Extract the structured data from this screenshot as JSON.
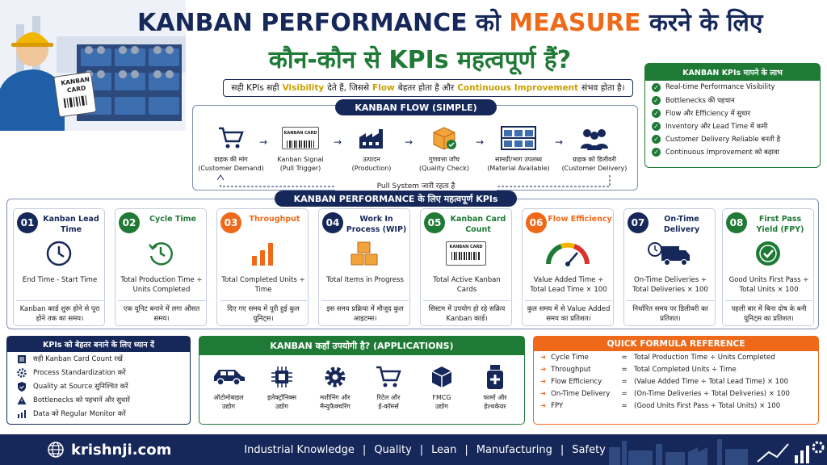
{
  "title_line1": {
    "a": "KANBAN PERFORMANCE",
    "b": "को",
    "c": "MEASURE",
    "d": "करने के लिए"
  },
  "title_line2": "कौन-कौन से KPIs महत्वपूर्ण हैं?",
  "hero": {
    "card_label": "KANBAN CARD"
  },
  "subtitle": {
    "p1": "सही KPIs सही",
    "visibility": "Visibility",
    "p2": "देते हैं, जिससे",
    "flow": "Flow",
    "p3": "बेहतर होता है और",
    "ci": "Continuous Improvement",
    "p4": "संभव होता है।"
  },
  "flow": {
    "heading": "KANBAN FLOW (SIMPLE)",
    "steps": [
      {
        "l1": "ग्राहक की मांग",
        "l2": "(Customer Demand)"
      },
      {
        "l1": "Kanban Signal",
        "l2": "(Pull Trigger)",
        "card": "KANBAN CARD"
      },
      {
        "l1": "उत्पादन",
        "l2": "(Production)"
      },
      {
        "l1": "गुणवत्ता जाँच",
        "l2": "(Quality Check)"
      },
      {
        "l1": "सामग्री/भाग उपलब्ध",
        "l2": "(Material Available)"
      },
      {
        "l1": "ग्राहक को डिलीवरी",
        "l2": "(Customer Delivery)"
      }
    ],
    "pull_label": "Pull System जारी रहता है",
    "arrow": "→"
  },
  "benefits": {
    "heading": "KANBAN KPIs मापने के लाभ",
    "check": "✓",
    "items": [
      "Real-time Performance Visibility",
      "Bottlenecks की पहचान",
      "Flow और Efficiency में सुधार",
      "Inventory और Lead Time में कमी",
      "Customer Delivery Reliable बनती है",
      "Continuous Improvement को बढ़ावा"
    ]
  },
  "kpi_heading": "KANBAN PERFORMANCE के लिए महत्वपूर्ण KPIs",
  "kpis": [
    {
      "num": "01",
      "name": "Kanban Lead Time",
      "formula": "End Time - Start Time",
      "desc": "Kanban कार्ड शुरू होने से पूरा होने तक का समय।",
      "color": "#16285a"
    },
    {
      "num": "02",
      "name": "Cycle Time",
      "formula": "Total Production Time ÷ Units Completed",
      "desc": "एक यूनिट बनाने में लगा औसत समय।",
      "color": "#1f7a36"
    },
    {
      "num": "03",
      "name": "Throughput",
      "formula": "Total Completed Units ÷ Time",
      "desc": "दिए गए समय में पूरी हुई कुल यूनिट्स।",
      "color": "#ee6a1a"
    },
    {
      "num": "04",
      "name": "Work In Process (WIP)",
      "formula": "Total Items in Progress",
      "desc": "इस समय प्रक्रिया में मौजूद कुल आइटम्स।",
      "color": "#16285a"
    },
    {
      "num": "05",
      "name": "Kanban Card Count",
      "formula": "Total Active Kanban Cards",
      "desc": "सिस्टम में उपयोग हो रहे सक्रिय Kanban कार्ड।",
      "color": "#1f7a36",
      "card": "KANBAN CARD"
    },
    {
      "num": "06",
      "name": "Flow Efficiency",
      "formula": "Value Added Time ÷ Total Lead Time × 100",
      "desc": "कुल समय में से Value Added समय का प्रतिशत।",
      "color": "#ee6a1a"
    },
    {
      "num": "07",
      "name": "On-Time Delivery",
      "formula": "On-Time Deliveries ÷ Total Deliveries × 100",
      "desc": "निर्धारित समय पर डिलीवरी का प्रतिशत।",
      "color": "#16285a"
    },
    {
      "num": "08",
      "name": "First Pass Yield (FPY)",
      "formula": "Good Units First Pass ÷ Total Units × 100",
      "desc": "पहली बार में बिना दोष के बनी यूनिट्स का प्रतिशत।",
      "color": "#1f7a36"
    }
  ],
  "tips": {
    "heading": "KPIs को बेहतर बनाने के लिए ध्यान दें",
    "items": [
      "सही Kanban Card Count रखें",
      "Process Standardization करें",
      "Quality at Source सुनिश्चित करें",
      "Bottlenecks को पहचानें और सुधारें",
      "Data को Regular Monitor करें"
    ]
  },
  "apps": {
    "heading": "KANBAN कहाँ उपयोगी है? (APPLICATIONS)",
    "items": [
      {
        "l1": "ऑटोमोबाइल",
        "l2": "उद्योग"
      },
      {
        "l1": "इलेक्ट्रॉनिक्स",
        "l2": "उद्योग"
      },
      {
        "l1": "मशीनिंग और",
        "l2": "मैन्युफैक्चरिंग"
      },
      {
        "l1": "रिटेल और",
        "l2": "ई-कॉमर्स"
      },
      {
        "l1": "FMCG",
        "l2": "उद्योग"
      },
      {
        "l1": "फार्मा और",
        "l2": "हेल्थकेयर"
      }
    ]
  },
  "formula": {
    "heading": "QUICK FORMULA REFERENCE",
    "eq": "=",
    "bullet": "➜",
    "rows": [
      {
        "name": "Cycle Time",
        "expr": "Total Production Time ÷ Units Completed"
      },
      {
        "name": "Throughput",
        "expr": "Total Completed Units ÷ Time"
      },
      {
        "name": "Flow Efficiency",
        "expr": "(Value Added Time ÷ Total Lead Time) × 100"
      },
      {
        "name": "On-Time Delivery",
        "expr": "(On-Time Deliveries ÷ Total Deliveries) × 100"
      },
      {
        "name": "FPY",
        "expr": "(Good Units First Pass ÷ Total Units) × 100"
      }
    ]
  },
  "footer": {
    "site": "krishnji.com",
    "links": [
      "Industrial Knowledge",
      "Quality",
      "Lean",
      "Manufacturing",
      "Safety"
    ],
    "sep": "|"
  }
}
